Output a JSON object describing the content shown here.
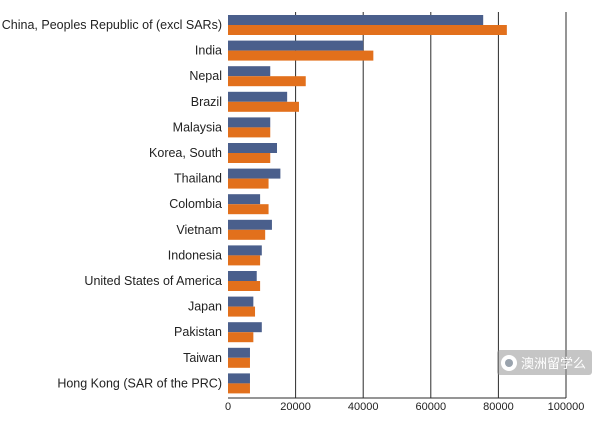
{
  "chart_data": {
    "type": "bar",
    "orientation": "horizontal",
    "categories": [
      "China, Peoples Republic of (excl SARs)",
      "India",
      "Nepal",
      "Brazil",
      "Malaysia",
      "Korea, South",
      "Thailand",
      "Colombia",
      "Vietnam",
      "Indonesia",
      "United States of America",
      "Japan",
      "Pakistan",
      "Taiwan",
      "Hong Kong (SAR of the PRC)"
    ],
    "series": [
      {
        "color": "#4a5f8c",
        "values": [
          75500,
          40000,
          12500,
          17500,
          12500,
          14500,
          15500,
          9500,
          13000,
          10000,
          8500,
          7500,
          10000,
          6500,
          6500
        ]
      },
      {
        "color": "#e2701c",
        "values": [
          82500,
          43000,
          23000,
          21000,
          12500,
          12500,
          12000,
          12000,
          11000,
          9500,
          9500,
          8000,
          7500,
          6500,
          6500
        ]
      }
    ],
    "xlim": [
      0,
      100000
    ],
    "xticks": [
      0,
      20000,
      40000,
      60000,
      80000,
      100000
    ],
    "xtick_labels": [
      "0",
      "20000",
      "40000",
      "60000",
      "80000",
      "100000"
    ],
    "grid": "vertical",
    "title": "",
    "xlabel": "",
    "ylabel": ""
  },
  "watermark": {
    "icon": "wechat-icon",
    "text": "澳洲留学么"
  }
}
